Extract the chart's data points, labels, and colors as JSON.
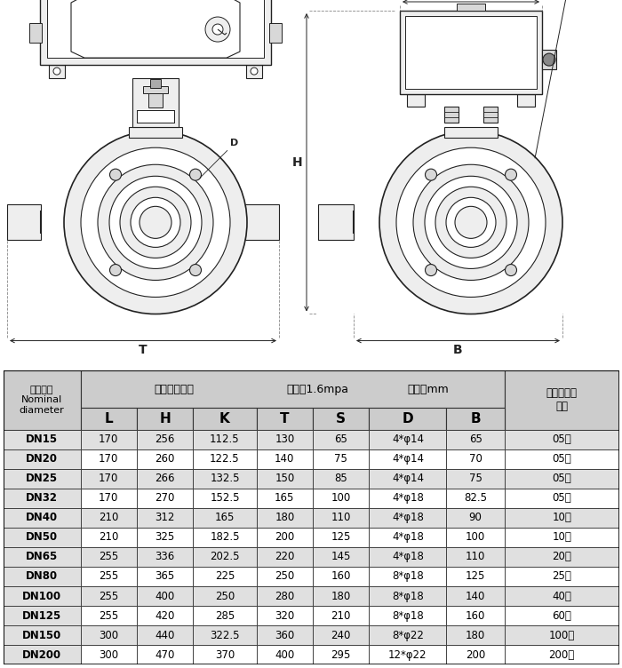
{
  "rows": [
    [
      "DN15",
      "170",
      "256",
      "112.5",
      "130",
      "65",
      "4*φ14",
      "65",
      "05型"
    ],
    [
      "DN20",
      "170",
      "260",
      "122.5",
      "140",
      "75",
      "4*φ14",
      "70",
      "05型"
    ],
    [
      "DN25",
      "170",
      "266",
      "132.5",
      "150",
      "85",
      "4*φ14",
      "75",
      "05型"
    ],
    [
      "DN32",
      "170",
      "270",
      "152.5",
      "165",
      "100",
      "4*φ18",
      "82.5",
      "05型"
    ],
    [
      "DN40",
      "210",
      "312",
      "165",
      "180",
      "110",
      "4*φ18",
      "90",
      "10型"
    ],
    [
      "DN50",
      "210",
      "325",
      "182.5",
      "200",
      "125",
      "4*φ18",
      "100",
      "10型"
    ],
    [
      "DN65",
      "255",
      "336",
      "202.5",
      "220",
      "145",
      "4*φ18",
      "110",
      "20型"
    ],
    [
      "DN80",
      "255",
      "365",
      "225",
      "250",
      "160",
      "8*φ18",
      "125",
      "25型"
    ],
    [
      "DN100",
      "255",
      "400",
      "250",
      "280",
      "180",
      "8*φ18",
      "140",
      "40型"
    ],
    [
      "DN125",
      "255",
      "420",
      "285",
      "320",
      "210",
      "8*φ18",
      "160",
      "60型"
    ],
    [
      "DN150",
      "300",
      "440",
      "322.5",
      "360",
      "240",
      "8*φ22",
      "180",
      "100型"
    ],
    [
      "DN200",
      "300",
      "470",
      "370",
      "400",
      "295",
      "12*φ22",
      "200",
      "200型"
    ]
  ],
  "header_bg": "#cccccc",
  "col1_bg": "#e0e0e0",
  "border_color": "#333333",
  "line_color": "#222222",
  "gray_fill": "#d8d8d8",
  "light_gray": "#eeeeee"
}
